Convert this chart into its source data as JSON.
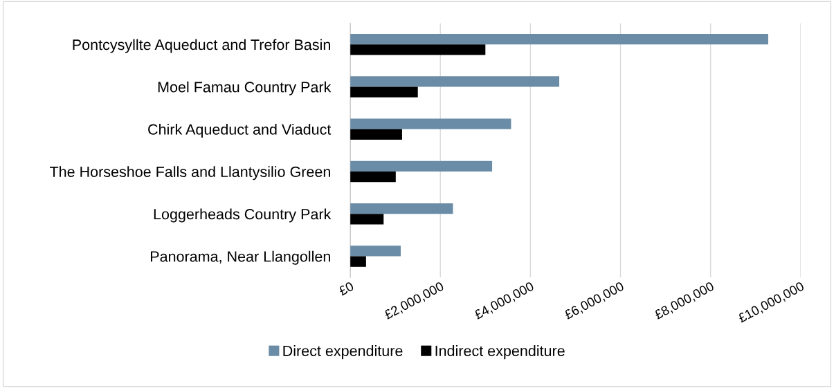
{
  "chart_data": {
    "type": "bar",
    "orientation": "horizontal",
    "categories": [
      "Pontcysyllte Aqueduct and Trefor Basin",
      "Moel Famau Country Park",
      "Chirk Aqueduct and Viaduct",
      "The Horseshoe Falls and Llantysilio Green",
      "Loggerheads Country Park",
      "Panorama, Near Llangollen"
    ],
    "series": [
      {
        "name": "Direct expenditure",
        "color": "#6a8ca6",
        "values": [
          9280000,
          4640000,
          3570000,
          3150000,
          2280000,
          1120000
        ]
      },
      {
        "name": "Indirect expenditure",
        "color": "#000000",
        "values": [
          3000000,
          1500000,
          1150000,
          1010000,
          740000,
          350000
        ]
      }
    ],
    "xlim": [
      0,
      10000000
    ],
    "xticks": [
      {
        "value": 0,
        "label": "£0"
      },
      {
        "value": 2000000,
        "label": "£2,000,000"
      },
      {
        "value": 4000000,
        "label": "£4,000,000"
      },
      {
        "value": 6000000,
        "label": "£6,000,000"
      },
      {
        "value": 8000000,
        "label": "£8,000,000"
      },
      {
        "value": 10000000,
        "label": "£10,000,000"
      }
    ],
    "grid": "x",
    "legend": "bottom"
  }
}
